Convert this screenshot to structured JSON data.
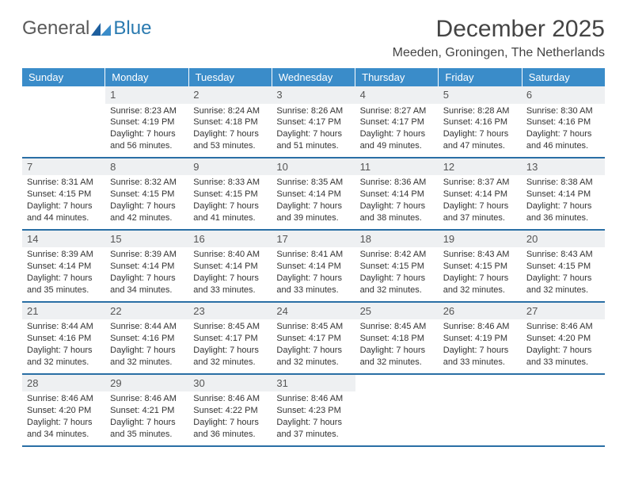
{
  "logo": {
    "general": "General",
    "blue": "Blue"
  },
  "title": "December 2025",
  "location": "Meeden, Groningen, The Netherlands",
  "colors": {
    "header_bg": "#3a8cc9",
    "header_text": "#ffffff",
    "rule": "#2a6fa5",
    "daynum_bg": "#eef0f2",
    "body_text": "#333333",
    "logo_gray": "#5a5a5a",
    "logo_blue": "#2a7ab0"
  },
  "day_headers": [
    "Sunday",
    "Monday",
    "Tuesday",
    "Wednesday",
    "Thursday",
    "Friday",
    "Saturday"
  ],
  "weeks": [
    [
      {
        "num": "",
        "sunrise": "",
        "sunset": "",
        "daylight": ""
      },
      {
        "num": "1",
        "sunrise": "Sunrise: 8:23 AM",
        "sunset": "Sunset: 4:19 PM",
        "daylight": "Daylight: 7 hours and 56 minutes."
      },
      {
        "num": "2",
        "sunrise": "Sunrise: 8:24 AM",
        "sunset": "Sunset: 4:18 PM",
        "daylight": "Daylight: 7 hours and 53 minutes."
      },
      {
        "num": "3",
        "sunrise": "Sunrise: 8:26 AM",
        "sunset": "Sunset: 4:17 PM",
        "daylight": "Daylight: 7 hours and 51 minutes."
      },
      {
        "num": "4",
        "sunrise": "Sunrise: 8:27 AM",
        "sunset": "Sunset: 4:17 PM",
        "daylight": "Daylight: 7 hours and 49 minutes."
      },
      {
        "num": "5",
        "sunrise": "Sunrise: 8:28 AM",
        "sunset": "Sunset: 4:16 PM",
        "daylight": "Daylight: 7 hours and 47 minutes."
      },
      {
        "num": "6",
        "sunrise": "Sunrise: 8:30 AM",
        "sunset": "Sunset: 4:16 PM",
        "daylight": "Daylight: 7 hours and 46 minutes."
      }
    ],
    [
      {
        "num": "7",
        "sunrise": "Sunrise: 8:31 AM",
        "sunset": "Sunset: 4:15 PM",
        "daylight": "Daylight: 7 hours and 44 minutes."
      },
      {
        "num": "8",
        "sunrise": "Sunrise: 8:32 AM",
        "sunset": "Sunset: 4:15 PM",
        "daylight": "Daylight: 7 hours and 42 minutes."
      },
      {
        "num": "9",
        "sunrise": "Sunrise: 8:33 AM",
        "sunset": "Sunset: 4:15 PM",
        "daylight": "Daylight: 7 hours and 41 minutes."
      },
      {
        "num": "10",
        "sunrise": "Sunrise: 8:35 AM",
        "sunset": "Sunset: 4:14 PM",
        "daylight": "Daylight: 7 hours and 39 minutes."
      },
      {
        "num": "11",
        "sunrise": "Sunrise: 8:36 AM",
        "sunset": "Sunset: 4:14 PM",
        "daylight": "Daylight: 7 hours and 38 minutes."
      },
      {
        "num": "12",
        "sunrise": "Sunrise: 8:37 AM",
        "sunset": "Sunset: 4:14 PM",
        "daylight": "Daylight: 7 hours and 37 minutes."
      },
      {
        "num": "13",
        "sunrise": "Sunrise: 8:38 AM",
        "sunset": "Sunset: 4:14 PM",
        "daylight": "Daylight: 7 hours and 36 minutes."
      }
    ],
    [
      {
        "num": "14",
        "sunrise": "Sunrise: 8:39 AM",
        "sunset": "Sunset: 4:14 PM",
        "daylight": "Daylight: 7 hours and 35 minutes."
      },
      {
        "num": "15",
        "sunrise": "Sunrise: 8:39 AM",
        "sunset": "Sunset: 4:14 PM",
        "daylight": "Daylight: 7 hours and 34 minutes."
      },
      {
        "num": "16",
        "sunrise": "Sunrise: 8:40 AM",
        "sunset": "Sunset: 4:14 PM",
        "daylight": "Daylight: 7 hours and 33 minutes."
      },
      {
        "num": "17",
        "sunrise": "Sunrise: 8:41 AM",
        "sunset": "Sunset: 4:14 PM",
        "daylight": "Daylight: 7 hours and 33 minutes."
      },
      {
        "num": "18",
        "sunrise": "Sunrise: 8:42 AM",
        "sunset": "Sunset: 4:15 PM",
        "daylight": "Daylight: 7 hours and 32 minutes."
      },
      {
        "num": "19",
        "sunrise": "Sunrise: 8:43 AM",
        "sunset": "Sunset: 4:15 PM",
        "daylight": "Daylight: 7 hours and 32 minutes."
      },
      {
        "num": "20",
        "sunrise": "Sunrise: 8:43 AM",
        "sunset": "Sunset: 4:15 PM",
        "daylight": "Daylight: 7 hours and 32 minutes."
      }
    ],
    [
      {
        "num": "21",
        "sunrise": "Sunrise: 8:44 AM",
        "sunset": "Sunset: 4:16 PM",
        "daylight": "Daylight: 7 hours and 32 minutes."
      },
      {
        "num": "22",
        "sunrise": "Sunrise: 8:44 AM",
        "sunset": "Sunset: 4:16 PM",
        "daylight": "Daylight: 7 hours and 32 minutes."
      },
      {
        "num": "23",
        "sunrise": "Sunrise: 8:45 AM",
        "sunset": "Sunset: 4:17 PM",
        "daylight": "Daylight: 7 hours and 32 minutes."
      },
      {
        "num": "24",
        "sunrise": "Sunrise: 8:45 AM",
        "sunset": "Sunset: 4:17 PM",
        "daylight": "Daylight: 7 hours and 32 minutes."
      },
      {
        "num": "25",
        "sunrise": "Sunrise: 8:45 AM",
        "sunset": "Sunset: 4:18 PM",
        "daylight": "Daylight: 7 hours and 32 minutes."
      },
      {
        "num": "26",
        "sunrise": "Sunrise: 8:46 AM",
        "sunset": "Sunset: 4:19 PM",
        "daylight": "Daylight: 7 hours and 33 minutes."
      },
      {
        "num": "27",
        "sunrise": "Sunrise: 8:46 AM",
        "sunset": "Sunset: 4:20 PM",
        "daylight": "Daylight: 7 hours and 33 minutes."
      }
    ],
    [
      {
        "num": "28",
        "sunrise": "Sunrise: 8:46 AM",
        "sunset": "Sunset: 4:20 PM",
        "daylight": "Daylight: 7 hours and 34 minutes."
      },
      {
        "num": "29",
        "sunrise": "Sunrise: 8:46 AM",
        "sunset": "Sunset: 4:21 PM",
        "daylight": "Daylight: 7 hours and 35 minutes."
      },
      {
        "num": "30",
        "sunrise": "Sunrise: 8:46 AM",
        "sunset": "Sunset: 4:22 PM",
        "daylight": "Daylight: 7 hours and 36 minutes."
      },
      {
        "num": "31",
        "sunrise": "Sunrise: 8:46 AM",
        "sunset": "Sunset: 4:23 PM",
        "daylight": "Daylight: 7 hours and 37 minutes."
      },
      {
        "num": "",
        "sunrise": "",
        "sunset": "",
        "daylight": ""
      },
      {
        "num": "",
        "sunrise": "",
        "sunset": "",
        "daylight": ""
      },
      {
        "num": "",
        "sunrise": "",
        "sunset": "",
        "daylight": ""
      }
    ]
  ]
}
